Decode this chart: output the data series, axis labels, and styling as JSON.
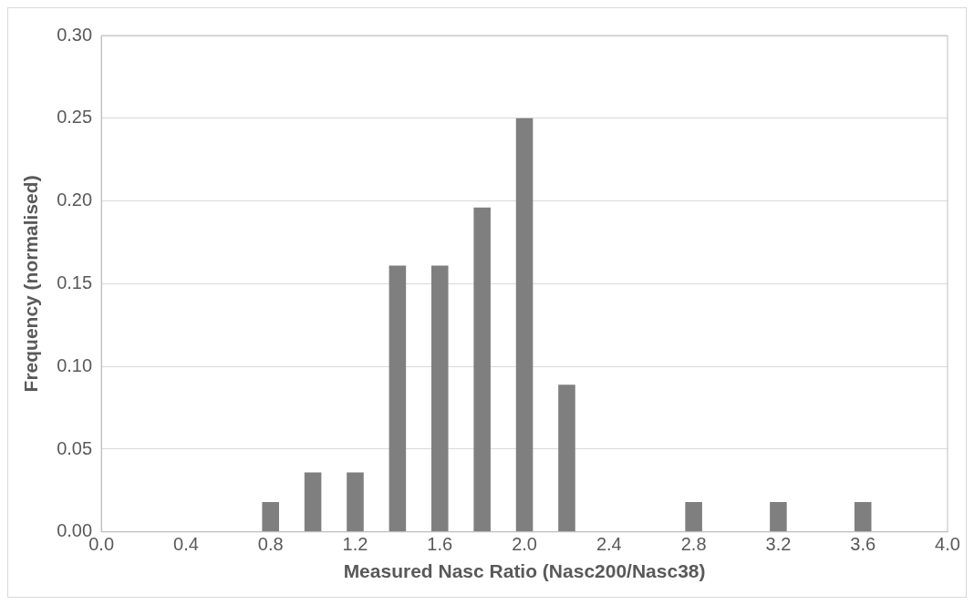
{
  "chart_data": {
    "type": "bar",
    "xlabel": "Measured Nasc Ratio (Nasc200/Nasc38)",
    "ylabel": "Frequency (normalised)",
    "x": [
      0.8,
      1.0,
      1.2,
      1.4,
      1.6,
      1.8,
      2.0,
      2.2,
      2.8,
      3.2,
      3.6
    ],
    "values": [
      0.018,
      0.036,
      0.036,
      0.161,
      0.161,
      0.196,
      0.25,
      0.089,
      0.018,
      0.018,
      0.018
    ],
    "color": "#7f7f7f",
    "xlim": [
      0,
      4
    ],
    "xticks": [
      {
        "value": 0,
        "label": "0.0"
      },
      0.4,
      0.8,
      1.2,
      1.6,
      {
        "value": 2,
        "label": "2.0"
      },
      {
        "value": 2.4,
        "label": "2.4"
      },
      2.8,
      3.2,
      3.6,
      {
        "value": 4,
        "label": "4.0"
      }
    ],
    "ylim": [
      0,
      0.3
    ],
    "yticks": [
      {
        "value": 0,
        "label": "0.00"
      },
      {
        "value": 0.05,
        "label": "0.05"
      },
      {
        "value": 0.1,
        "label": "0.10"
      },
      {
        "value": 0.15,
        "label": "0.15"
      },
      {
        "value": 0.2,
        "label": "0.20"
      },
      {
        "value": 0.25,
        "label": "0.25"
      },
      {
        "value": 0.3,
        "label": "0.30"
      }
    ],
    "grid": "y",
    "legend": false
  }
}
